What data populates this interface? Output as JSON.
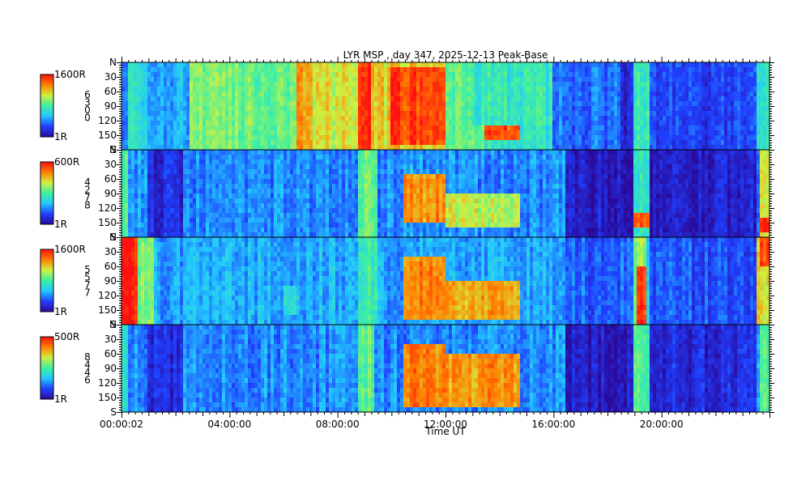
{
  "chart_data": {
    "type": "heatmap",
    "title": "LYR MSP , day 347, 2025-12-13 Peak-Base",
    "xlabel": "Time UT",
    "x_ticks": [
      "00:00:02",
      "04:00:00",
      "08:00:00",
      "12:00:00",
      "16:00:00",
      "20:00:00"
    ],
    "x_range_hours": [
      0,
      24
    ],
    "y_ticks": [
      "N",
      "30",
      "60",
      "90",
      "120",
      "150",
      "S"
    ],
    "y_range_deg": [
      0,
      180
    ],
    "colormap": [
      "#2a0a9a",
      "#2040ff",
      "#22c8ff",
      "#40f0a0",
      "#d0f040",
      "#ff8000",
      "#ff1010"
    ],
    "panels": [
      {
        "max_label": "1600R",
        "min_label": "1R",
        "channel_digits": [
          "6",
          "3",
          "0",
          "0"
        ],
        "baseline": 0.42,
        "events": [
          {
            "t0": 0.0,
            "t1": 0.2,
            "a0": 0,
            "a1": 180,
            "level": 0.2
          },
          {
            "t0": 1.0,
            "t1": 2.6,
            "a0": 0,
            "a1": 180,
            "level": 0.3
          },
          {
            "t0": 2.5,
            "t1": 6.5,
            "a0": 0,
            "a1": 180,
            "level": 0.56
          },
          {
            "t0": 6.5,
            "t1": 8.8,
            "a0": 0,
            "a1": 180,
            "level": 0.68
          },
          {
            "t0": 6.5,
            "t1": 7.1,
            "a0": 0,
            "a1": 180,
            "level": 0.78
          },
          {
            "t0": 8.8,
            "t1": 9.3,
            "a0": 0,
            "a1": 180,
            "level": 0.98
          },
          {
            "t0": 9.3,
            "t1": 12.0,
            "a0": 0,
            "a1": 180,
            "level": 0.72
          },
          {
            "t0": 10.0,
            "t1": 12.0,
            "a0": 10,
            "a1": 170,
            "level": 0.93
          },
          {
            "t0": 12.0,
            "t1": 13.5,
            "a0": 0,
            "a1": 180,
            "level": 0.55
          },
          {
            "t0": 13.5,
            "t1": 14.8,
            "a0": 130,
            "a1": 165,
            "level": 0.9
          },
          {
            "t0": 13.0,
            "t1": 16.0,
            "a0": 0,
            "a1": 130,
            "level": 0.45
          },
          {
            "t0": 16.0,
            "t1": 18.5,
            "a0": 0,
            "a1": 180,
            "level": 0.22
          },
          {
            "t0": 18.5,
            "t1": 19.3,
            "a0": 0,
            "a1": 180,
            "level": 0.1
          },
          {
            "t0": 19.0,
            "t1": 19.6,
            "a0": 0,
            "a1": 180,
            "level": 0.46
          },
          {
            "t0": 19.6,
            "t1": 23.5,
            "a0": 0,
            "a1": 180,
            "level": 0.15
          },
          {
            "t0": 23.5,
            "t1": 23.9,
            "a0": 0,
            "a1": 180,
            "level": 0.4
          }
        ]
      },
      {
        "max_label": "600R",
        "min_label": "1R",
        "channel_digits": [
          "4",
          "2",
          "7",
          "8"
        ],
        "baseline": 0.26,
        "events": [
          {
            "t0": 0.0,
            "t1": 0.3,
            "a0": 0,
            "a1": 180,
            "level": 0.5
          },
          {
            "t0": 1.0,
            "t1": 2.3,
            "a0": 0,
            "a1": 180,
            "level": 0.1
          },
          {
            "t0": 8.8,
            "t1": 9.5,
            "a0": 0,
            "a1": 180,
            "level": 0.55
          },
          {
            "t0": 10.5,
            "t1": 12.0,
            "a0": 50,
            "a1": 150,
            "level": 0.8
          },
          {
            "t0": 12.0,
            "t1": 14.8,
            "a0": 90,
            "a1": 160,
            "level": 0.65
          },
          {
            "t0": 16.5,
            "t1": 19.0,
            "a0": 0,
            "a1": 180,
            "level": 0.06
          },
          {
            "t0": 19.0,
            "t1": 19.6,
            "a0": 0,
            "a1": 180,
            "level": 0.45
          },
          {
            "t0": 19.0,
            "t1": 19.6,
            "a0": 130,
            "a1": 165,
            "level": 0.9
          },
          {
            "t0": 19.6,
            "t1": 23.5,
            "a0": 0,
            "a1": 180,
            "level": 0.08
          },
          {
            "t0": 23.6,
            "t1": 24.0,
            "a0": 0,
            "a1": 180,
            "level": 0.65
          },
          {
            "t0": 23.7,
            "t1": 24.0,
            "a0": 140,
            "a1": 170,
            "level": 0.95
          }
        ]
      },
      {
        "max_label": "1600R",
        "min_label": "1R",
        "channel_digits": [
          "5",
          "5",
          "7",
          "7"
        ],
        "baseline": 0.3,
        "events": [
          {
            "t0": 0.0,
            "t1": 0.6,
            "a0": 0,
            "a1": 180,
            "level": 0.97
          },
          {
            "t0": 0.6,
            "t1": 1.2,
            "a0": 0,
            "a1": 180,
            "level": 0.55
          },
          {
            "t0": 6.0,
            "t1": 6.5,
            "a0": 100,
            "a1": 160,
            "level": 0.45
          },
          {
            "t0": 8.8,
            "t1": 9.5,
            "a0": 0,
            "a1": 180,
            "level": 0.48
          },
          {
            "t0": 10.5,
            "t1": 12.0,
            "a0": 40,
            "a1": 170,
            "level": 0.82
          },
          {
            "t0": 12.0,
            "t1": 14.8,
            "a0": 90,
            "a1": 170,
            "level": 0.78
          },
          {
            "t0": 16.5,
            "t1": 19.0,
            "a0": 0,
            "a1": 180,
            "level": 0.2
          },
          {
            "t0": 19.0,
            "t1": 19.5,
            "a0": 0,
            "a1": 180,
            "level": 0.6
          },
          {
            "t0": 19.1,
            "t1": 19.5,
            "a0": 60,
            "a1": 180,
            "level": 0.93
          },
          {
            "t0": 19.6,
            "t1": 23.5,
            "a0": 0,
            "a1": 180,
            "level": 0.18
          },
          {
            "t0": 23.5,
            "t1": 24.0,
            "a0": 0,
            "a1": 180,
            "level": 0.7
          },
          {
            "t0": 23.7,
            "t1": 24.0,
            "a0": 0,
            "a1": 60,
            "level": 0.93
          }
        ]
      },
      {
        "max_label": "500R",
        "min_label": "1R",
        "channel_digits": [
          "8",
          "4",
          "4",
          "6"
        ],
        "baseline": 0.26,
        "events": [
          {
            "t0": 0.0,
            "t1": 0.3,
            "a0": 0,
            "a1": 180,
            "level": 0.45
          },
          {
            "t0": 1.0,
            "t1": 2.3,
            "a0": 0,
            "a1": 180,
            "level": 0.12
          },
          {
            "t0": 8.8,
            "t1": 9.4,
            "a0": 0,
            "a1": 180,
            "level": 0.55
          },
          {
            "t0": 10.5,
            "t1": 12.0,
            "a0": 40,
            "a1": 170,
            "level": 0.85
          },
          {
            "t0": 12.0,
            "t1": 14.8,
            "a0": 60,
            "a1": 170,
            "level": 0.8
          },
          {
            "t0": 16.5,
            "t1": 19.0,
            "a0": 0,
            "a1": 180,
            "level": 0.06
          },
          {
            "t0": 19.0,
            "t1": 19.6,
            "a0": 0,
            "a1": 180,
            "level": 0.5
          },
          {
            "t0": 19.6,
            "t1": 23.5,
            "a0": 0,
            "a1": 180,
            "level": 0.1
          },
          {
            "t0": 23.6,
            "t1": 24.0,
            "a0": 0,
            "a1": 180,
            "level": 0.55
          }
        ]
      }
    ]
  }
}
